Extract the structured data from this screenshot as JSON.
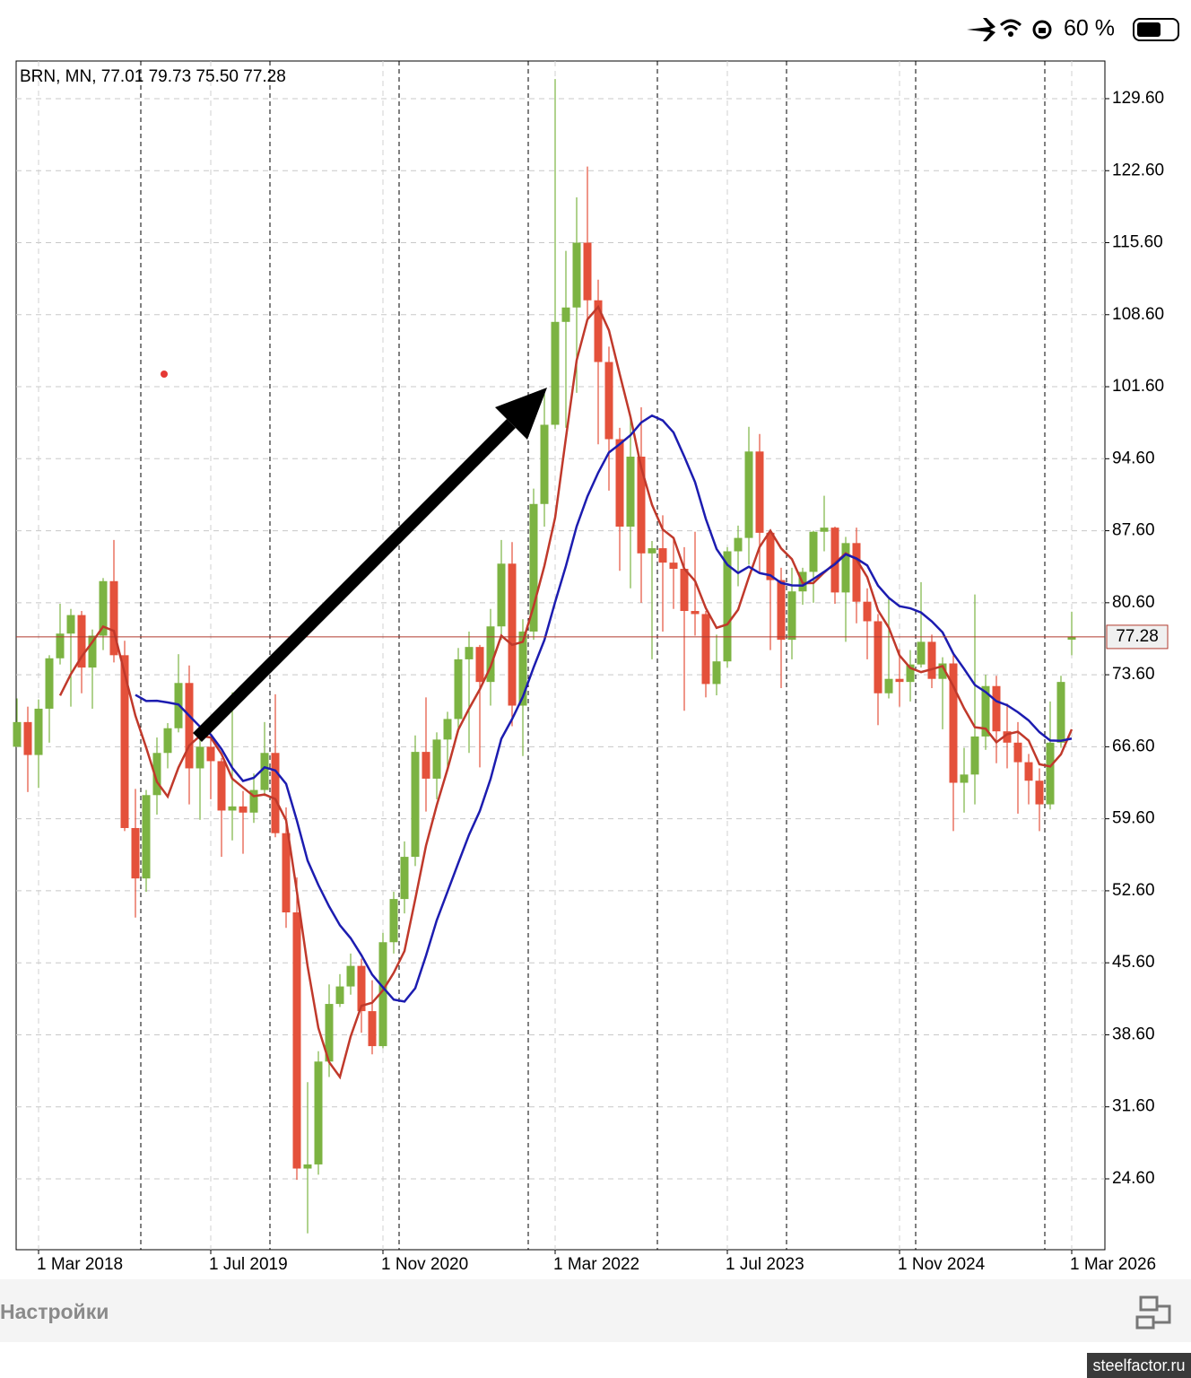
{
  "status_bar": {
    "battery": "60 %"
  },
  "chart_data": {
    "type": "candlestick",
    "title": "BRN, MN, 77.01 79.73 75.50 77.28",
    "x": [
      "2018-01",
      "2018-02",
      "2018-03",
      "2018-04",
      "2018-05",
      "2018-06",
      "2018-07",
      "2018-08",
      "2018-09",
      "2018-10",
      "2018-11",
      "2018-12",
      "2019-01",
      "2019-02",
      "2019-03",
      "2019-04",
      "2019-05",
      "2019-06",
      "2019-07",
      "2019-08",
      "2019-09",
      "2019-10",
      "2019-11",
      "2019-12",
      "2020-01",
      "2020-02",
      "2020-03",
      "2020-04",
      "2020-05",
      "2020-06",
      "2020-07",
      "2020-08",
      "2020-09",
      "2020-10",
      "2020-11",
      "2020-12",
      "2021-01",
      "2021-02",
      "2021-03",
      "2021-04",
      "2021-05",
      "2021-06",
      "2021-07",
      "2021-08",
      "2021-09",
      "2021-10",
      "2021-11",
      "2021-12",
      "2022-01",
      "2022-02",
      "2022-03",
      "2022-04",
      "2022-05",
      "2022-06",
      "2022-07",
      "2022-08",
      "2022-09",
      "2022-10",
      "2022-11",
      "2022-12",
      "2023-01",
      "2023-02",
      "2023-03",
      "2023-04",
      "2023-05",
      "2023-06",
      "2023-07",
      "2023-08",
      "2023-09",
      "2023-10",
      "2023-11",
      "2023-12",
      "2024-01",
      "2024-02",
      "2024-03",
      "2024-04",
      "2024-05",
      "2024-06",
      "2024-07",
      "2024-08",
      "2024-09",
      "2024-10",
      "2024-11",
      "2024-12",
      "2025-01",
      "2025-02",
      "2025-03",
      "2025-04",
      "2025-05",
      "2025-06",
      "2025-07",
      "2025-08",
      "2025-09",
      "2025-10",
      "2025-11",
      "2025-12",
      "2026-01",
      "2026-02",
      "2026-03"
    ],
    "open": [
      66.6,
      69.0,
      65.8,
      70.3,
      75.2,
      77.6,
      79.4,
      74.3,
      77.4,
      82.7,
      75.5,
      58.7,
      53.8,
      61.9,
      66.0,
      68.4,
      72.8,
      64.5,
      66.6,
      65.2,
      60.4,
      60.8,
      60.2,
      62.4,
      66.0,
      58.2,
      50.5,
      25.6,
      26.0,
      36.0,
      41.6,
      43.3,
      45.3,
      40.9,
      37.5,
      47.6,
      51.8,
      55.9,
      66.1,
      63.5,
      67.3,
      69.3,
      75.1,
      76.3,
      72.9,
      78.3,
      84.4,
      70.6,
      77.8,
      90.2,
      97.9,
      107.9,
      109.3,
      115.6,
      110.0,
      104.0,
      96.5,
      88.0,
      94.8,
      85.4,
      85.9,
      84.5,
      83.9,
      79.8,
      79.5,
      72.7,
      74.9,
      85.6,
      86.9,
      95.3,
      87.4,
      82.8,
      77.0,
      81.7,
      83.6,
      87.5,
      87.9,
      81.6,
      86.4,
      80.7,
      78.8,
      71.8,
      73.2,
      72.9,
      74.6,
      76.8,
      73.2,
      74.7,
      63.1,
      63.9,
      67.6,
      72.5,
      68.1,
      67.0,
      65.1,
      63.3,
      61.0,
      67.0,
      77.01
    ],
    "high": [
      71.3,
      70.5,
      71.2,
      75.5,
      80.5,
      80.0,
      79.8,
      78.0,
      83.0,
      86.7,
      76.9,
      62.5,
      62.4,
      67.5,
      68.9,
      75.6,
      74.5,
      67.5,
      67.5,
      65.5,
      71.9,
      62.3,
      64.0,
      69.0,
      71.7,
      60.7,
      53.9,
      34.0,
      37.0,
      43.5,
      44.5,
      46.5,
      46.0,
      43.9,
      48.5,
      52.5,
      57.4,
      67.7,
      71.4,
      68.0,
      70.0,
      76.2,
      77.8,
      76.5,
      80.0,
      86.7,
      86.5,
      79.0,
      91.7,
      101.3,
      131.5,
      114.8,
      120.0,
      123.0,
      112.0,
      105.5,
      97.6,
      98.5,
      99.6,
      86.6,
      89.1,
      86.9,
      86.0,
      87.5,
      79.8,
      77.5,
      86.0,
      88.1,
      97.7,
      97.0,
      87.6,
      84.0,
      84.0,
      84.0,
      87.6,
      91.0,
      88.0,
      87.0,
      87.9,
      82.0,
      79.5,
      81.2,
      76.1,
      76.0,
      82.6,
      77.5,
      75.3,
      75.5,
      66.5,
      81.4,
      73.6,
      73.5,
      70.8,
      69.0,
      65.9,
      64.5,
      71.0,
      73.5,
      79.73
    ],
    "low": [
      66.6,
      62.2,
      62.6,
      67.0,
      74.6,
      70.5,
      71.8,
      70.3,
      76.0,
      74.8,
      58.4,
      50.0,
      52.5,
      60.0,
      64.5,
      68.0,
      61.0,
      59.5,
      61.5,
      55.9,
      57.5,
      56.2,
      59.2,
      61.8,
      57.8,
      49.0,
      24.5,
      19.3,
      25.0,
      34.5,
      41.3,
      42.5,
      38.8,
      36.7,
      37.3,
      46.5,
      50.4,
      55.0,
      60.3,
      61.5,
      64.5,
      68.0,
      66.0,
      64.6,
      70.6,
      77.0,
      68.6,
      65.7,
      77.0,
      88.0,
      97.5,
      97.6,
      101.0,
      108.0,
      96.0,
      91.5,
      83.7,
      82.0,
      80.6,
      75.1,
      77.8,
      80.0,
      70.1,
      77.4,
      71.4,
      71.6,
      74.3,
      82.2,
      84.3,
      83.4,
      76.0,
      72.3,
      75.1,
      80.4,
      80.6,
      85.6,
      80.5,
      76.8,
      78.6,
      75.1,
      68.7,
      71.3,
      70.5,
      71.0,
      74.3,
      72.3,
      68.3,
      58.4,
      60.2,
      61.0,
      66.3,
      65.0,
      64.5,
      60.1,
      61.0,
      58.4,
      60.5,
      66.5,
      75.5
    ],
    "close": [
      69.0,
      65.8,
      70.3,
      75.2,
      77.6,
      79.4,
      74.3,
      77.4,
      82.7,
      75.5,
      58.7,
      53.8,
      61.9,
      66.0,
      68.4,
      72.8,
      64.5,
      66.6,
      65.2,
      60.4,
      60.8,
      60.2,
      62.4,
      66.0,
      58.2,
      50.5,
      25.6,
      26.0,
      36.0,
      41.6,
      43.3,
      45.3,
      40.9,
      37.5,
      47.6,
      51.8,
      55.9,
      66.1,
      63.5,
      67.3,
      69.3,
      75.1,
      76.3,
      72.9,
      78.3,
      84.4,
      70.6,
      77.8,
      90.2,
      97.9,
      107.9,
      109.3,
      115.6,
      110.0,
      104.0,
      96.5,
      88.0,
      94.8,
      85.4,
      85.9,
      84.5,
      83.9,
      79.8,
      79.5,
      72.7,
      74.9,
      85.6,
      86.9,
      95.3,
      87.4,
      82.8,
      77.0,
      81.7,
      83.6,
      87.5,
      87.9,
      81.6,
      86.4,
      80.7,
      78.8,
      71.8,
      73.2,
      72.9,
      74.6,
      76.8,
      73.2,
      74.7,
      63.1,
      63.9,
      67.6,
      72.5,
      68.1,
      67.0,
      65.1,
      63.3,
      61.0,
      67.0,
      72.9,
      77.28
    ],
    "colors": {
      "up": "#7cb342",
      "down": "#e4513b",
      "last": "#b03a2e",
      "fast": "#c0392b",
      "slow": "#1c1cb0"
    },
    "ylim": [
      17.71,
      133.26
    ],
    "yticks": [
      {
        "value": 24.6,
        "label": "24.60"
      },
      {
        "value": 31.6,
        "label": "31.60"
      },
      {
        "value": 38.6,
        "label": "38.60"
      },
      {
        "value": 45.6,
        "label": "45.60"
      },
      {
        "value": 52.6,
        "label": "52.60"
      },
      {
        "value": 59.6,
        "label": "59.60"
      },
      {
        "value": 66.6,
        "label": "66.60"
      },
      {
        "value": 73.6,
        "label": "73.60"
      },
      {
        "value": 80.6,
        "label": "80.60"
      },
      {
        "value": 87.6,
        "label": "87.60"
      },
      {
        "value": 94.6,
        "label": "94.60"
      },
      {
        "value": 101.6,
        "label": "101.60"
      },
      {
        "value": 108.6,
        "label": "108.60"
      },
      {
        "value": 115.6,
        "label": "115.60"
      },
      {
        "value": 122.6,
        "label": "122.60"
      },
      {
        "value": 129.6,
        "label": "129.60"
      }
    ],
    "xticks": [
      {
        "value": "2018-03",
        "label": "1 Mar 2018"
      },
      {
        "value": "2019-07",
        "label": "1 Jul 2019"
      },
      {
        "value": "2020-11",
        "label": "1 Nov 2020"
      },
      {
        "value": "2022-03",
        "label": "1 Mar 2022"
      },
      {
        "value": "2023-07",
        "label": "1 Jul 2023"
      },
      {
        "value": "2024-11",
        "label": "1 Nov 2024"
      },
      {
        "value": "2026-03",
        "label": "1 Mar 2026"
      }
    ],
    "grid": true
  },
  "toolbar": {
    "settings": "Настройки"
  },
  "watermark": "steelfactor.ru"
}
